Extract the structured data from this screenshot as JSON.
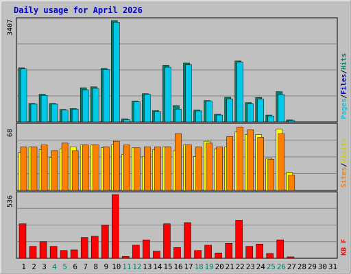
{
  "title": "Daily usage for April 2026",
  "colors": {
    "background": "#c0c0c0",
    "title": "#0000cc",
    "hits_front": "#00c8e8",
    "hits_back": "#00806a",
    "files_front": "#00c8e8",
    "visits_front": "#ffff00",
    "sites_front": "#ff8000",
    "kbytes_front": "#ff0000",
    "weekend_day": "#00806a",
    "weekday": "#000000"
  },
  "chart_data": [
    {
      "type": "bar",
      "panel": "hits-files",
      "ymax_label": "3407",
      "ylim": [
        0,
        3407
      ],
      "legend": [
        {
          "text": "Hits",
          "color": "#00806a"
        },
        {
          "text": "/",
          "color": "#000000"
        },
        {
          "text": "Files",
          "color": "#0000cc"
        },
        {
          "text": "/",
          "color": "#000000"
        },
        {
          "text": "Pages",
          "color": "#00c8e8"
        }
      ],
      "categories": [
        "1",
        "2",
        "3",
        "4",
        "5",
        "6",
        "7",
        "8",
        "9",
        "10",
        "11",
        "12",
        "13",
        "14",
        "15",
        "16",
        "17",
        "18",
        "19",
        "20",
        "21",
        "22",
        "23",
        "24",
        "25",
        "26",
        "27",
        "28",
        "29",
        "30",
        "31"
      ],
      "series": [
        {
          "name": "Hits",
          "values": [
            1820,
            620,
            930,
            620,
            420,
            450,
            1150,
            1180,
            1800,
            3407,
            100,
            700,
            950,
            380,
            1900,
            550,
            1980,
            400,
            720,
            260,
            830,
            2050,
            650,
            820,
            230,
            1020,
            70,
            0,
            0,
            0,
            0
          ]
        },
        {
          "name": "Files",
          "values": [
            1780,
            600,
            890,
            600,
            400,
            430,
            1080,
            1130,
            1760,
            3350,
            80,
            680,
            930,
            350,
            1840,
            430,
            1920,
            370,
            700,
            230,
            770,
            2010,
            610,
            770,
            200,
            920,
            50,
            0,
            0,
            0,
            0
          ]
        }
      ]
    },
    {
      "type": "bar",
      "panel": "visits-sites",
      "ymax_label": "68",
      "ylim": [
        0,
        68
      ],
      "legend": [
        {
          "text": "Visits",
          "color": "#cccc00"
        },
        {
          "text": "/",
          "color": "#000000"
        },
        {
          "text": "Sites",
          "color": "#ff8000"
        }
      ],
      "series": [
        {
          "name": "Visits",
          "values": [
            40,
            46,
            43,
            35,
            44,
            46,
            48,
            48,
            45,
            48,
            38,
            45,
            36,
            43,
            46,
            42,
            48,
            36,
            52,
            44,
            46,
            62,
            59,
            59,
            34,
            65,
            19,
            0,
            0,
            0,
            0
          ]
        },
        {
          "name": "Sites",
          "values": [
            46,
            46,
            48,
            42,
            50,
            42,
            48,
            48,
            46,
            52,
            48,
            45,
            46,
            46,
            46,
            60,
            48,
            46,
            50,
            46,
            57,
            67,
            64,
            56,
            33,
            60,
            16,
            0,
            0,
            0,
            0
          ]
        }
      ]
    },
    {
      "type": "bar",
      "panel": "kbytes",
      "ymax_label": "536",
      "ylim": [
        0,
        536
      ],
      "legend": [
        {
          "text": "KB F",
          "color": "#ff0000"
        }
      ],
      "series": [
        {
          "name": "KB F",
          "values": [
            290,
            100,
            140,
            100,
            65,
            70,
            175,
            185,
            280,
            536,
            15,
            110,
            155,
            60,
            290,
            90,
            300,
            65,
            110,
            45,
            125,
            320,
            100,
            120,
            40,
            155,
            12,
            0,
            0,
            0,
            0
          ]
        }
      ]
    }
  ],
  "weekend_days": [
    "4",
    "5",
    "11",
    "12",
    "18",
    "19",
    "25",
    "26"
  ]
}
